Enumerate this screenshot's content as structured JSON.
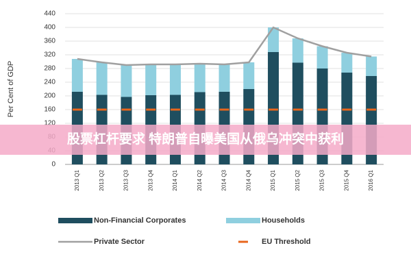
{
  "chart_data": {
    "type": "bar",
    "stacked": true,
    "y_label": "Per Cent of GDP",
    "categories": [
      "2013 Q1",
      "2013 Q2",
      "2013 Q3",
      "2013 Q4",
      "2014 Q1",
      "2014 Q2",
      "2014 Q3",
      "2014 Q4",
      "2015 Q1",
      "2015 Q2",
      "2015 Q3",
      "2015 Q4",
      "2016 Q1"
    ],
    "series": [
      {
        "name": "Non-Financial Corporates",
        "type": "bar",
        "color": "#1f4e5f",
        "values": [
          212,
          203,
          197,
          202,
          203,
          211,
          212,
          220,
          328,
          297,
          280,
          268,
          258
        ]
      },
      {
        "name": "Households",
        "type": "bar",
        "color": "#8fcfdf",
        "values": [
          96,
          95,
          93,
          90,
          89,
          83,
          80,
          78,
          72,
          71,
          65,
          58,
          57
        ]
      },
      {
        "name": "Private Sector",
        "type": "line",
        "color": "#a0a0a0",
        "values": [
          308,
          298,
          290,
          292,
          292,
          294,
          292,
          298,
          400,
          368,
          345,
          326,
          315
        ]
      },
      {
        "name": "EU Threshold",
        "type": "dashed",
        "color": "#e8661c",
        "values": [
          160,
          160,
          160,
          160,
          160,
          160,
          160,
          160,
          160,
          160,
          160,
          160,
          160
        ]
      }
    ],
    "ylim": [
      0,
      440
    ],
    "yticks": [
      0,
      40,
      80,
      120,
      160,
      200,
      240,
      280,
      320,
      360,
      400,
      440
    ],
    "grid": true,
    "legend": "bottom"
  },
  "overlay_text": "股票杠杆要求 特朗普自曝美国从俄乌冲突中获利"
}
